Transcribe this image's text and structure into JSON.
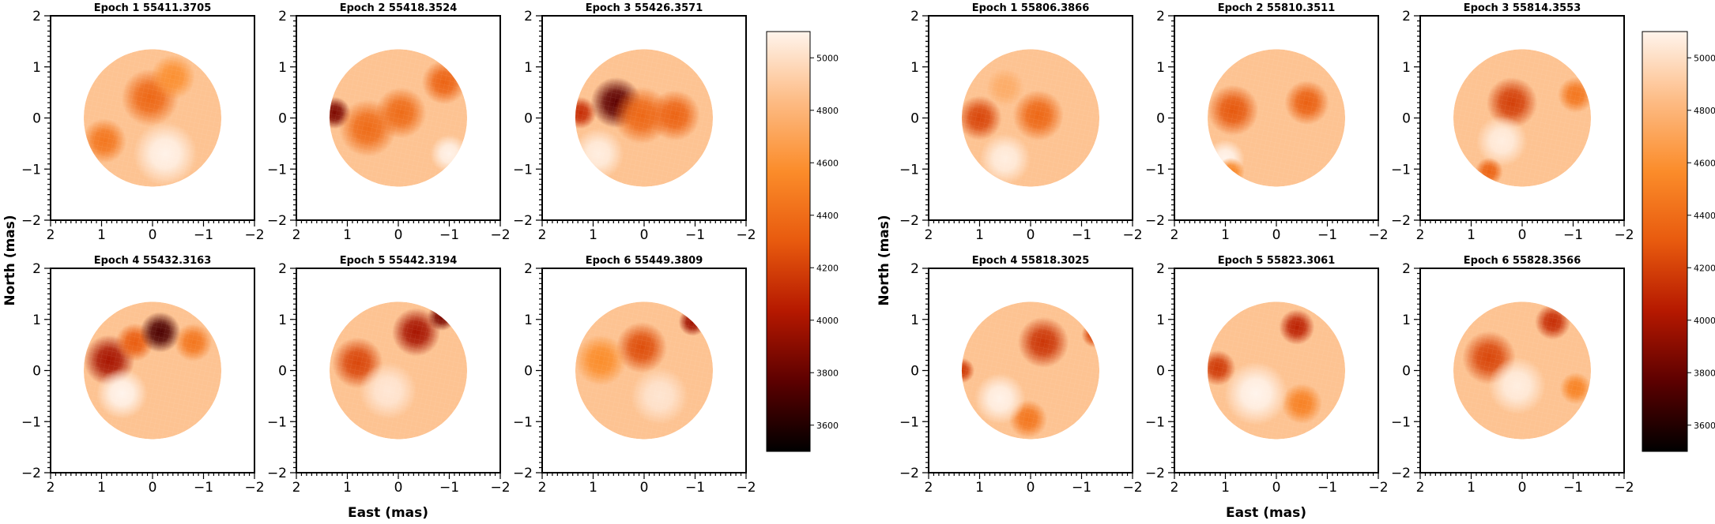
{
  "colors": {
    "axis": "#000000",
    "background": "#ffffff",
    "colormap": [
      "#000000",
      "#5c0000",
      "#b51800",
      "#e85a0e",
      "#fb8c2a",
      "#fdbb84",
      "#fff4ec"
    ]
  },
  "chart_data": [
    {
      "type": "heatmap",
      "name": "left-figure",
      "xlabel": "East (mas)",
      "ylabel": "North (mas)",
      "xlim": [
        2,
        -2
      ],
      "ylim": [
        -2,
        2
      ],
      "xticks": [
        "2",
        "1",
        "0",
        "−1",
        "−2"
      ],
      "yticks": [
        "2",
        "1",
        "0",
        "−1",
        "−2"
      ],
      "grid": false,
      "colorbar": {
        "range": [
          3500,
          5100
        ],
        "ticks": [
          "5000",
          "4800",
          "4600",
          "4400",
          "4200",
          "4000",
          "3800",
          "3600"
        ],
        "tick_values": [
          5000,
          4800,
          4600,
          4400,
          4200,
          4000,
          3800,
          3600
        ]
      },
      "stellar_radius_mas": 1.35,
      "base_temperature": 4870,
      "panels": [
        {
          "title": "Epoch 1 55411.3705",
          "spots": [
            {
              "x": 0.05,
              "y": 0.4,
              "r": 0.45,
              "dT": -500
            },
            {
              "x": -0.4,
              "y": 0.8,
              "r": 0.35,
              "dT": -280
            },
            {
              "x": 0.95,
              "y": -0.45,
              "r": 0.35,
              "dT": -420
            },
            {
              "x": -0.25,
              "y": -0.7,
              "r": 0.5,
              "dT": 220
            }
          ]
        },
        {
          "title": "Epoch 2 55418.3524",
          "spots": [
            {
              "x": 1.25,
              "y": 0.1,
              "r": 0.25,
              "dT": -1000
            },
            {
              "x": 0.6,
              "y": -0.2,
              "r": 0.45,
              "dT": -480
            },
            {
              "x": -0.05,
              "y": 0.1,
              "r": 0.4,
              "dT": -480
            },
            {
              "x": -0.9,
              "y": 0.7,
              "r": 0.35,
              "dT": -520
            },
            {
              "x": -1.0,
              "y": -0.7,
              "r": 0.3,
              "dT": 220
            }
          ]
        },
        {
          "title": "Epoch 3 55426.3571",
          "spots": [
            {
              "x": 1.25,
              "y": 0.1,
              "r": 0.25,
              "dT": -750
            },
            {
              "x": 0.55,
              "y": 0.3,
              "r": 0.4,
              "dT": -1100
            },
            {
              "x": 0.05,
              "y": 0.05,
              "r": 0.45,
              "dT": -500
            },
            {
              "x": -0.6,
              "y": 0.05,
              "r": 0.4,
              "dT": -520
            },
            {
              "x": 0.9,
              "y": -0.7,
              "r": 0.4,
              "dT": 200
            }
          ]
        },
        {
          "title": "Epoch 4 55432.3163",
          "spots": [
            {
              "x": 0.85,
              "y": 0.2,
              "r": 0.4,
              "dT": -880
            },
            {
              "x": 0.35,
              "y": 0.55,
              "r": 0.3,
              "dT": -560
            },
            {
              "x": -0.15,
              "y": 0.75,
              "r": 0.32,
              "dT": -1150
            },
            {
              "x": -0.8,
              "y": 0.55,
              "r": 0.3,
              "dT": -420
            },
            {
              "x": 0.6,
              "y": -0.45,
              "r": 0.4,
              "dT": 230
            }
          ]
        },
        {
          "title": "Epoch 5 55442.3194",
          "spots": [
            {
              "x": 0.8,
              "y": 0.15,
              "r": 0.4,
              "dT": -650
            },
            {
              "x": -0.35,
              "y": 0.75,
              "r": 0.38,
              "dT": -880
            },
            {
              "x": -0.85,
              "y": 1.05,
              "r": 0.22,
              "dT": -1000
            },
            {
              "x": 0.2,
              "y": -0.4,
              "r": 0.45,
              "dT": 170
            }
          ]
        },
        {
          "title": "Epoch 6 55449.3809",
          "spots": [
            {
              "x": 0.05,
              "y": 0.45,
              "r": 0.4,
              "dT": -620
            },
            {
              "x": 0.85,
              "y": 0.2,
              "r": 0.4,
              "dT": -300
            },
            {
              "x": -0.95,
              "y": 0.95,
              "r": 0.22,
              "dT": -900
            },
            {
              "x": -0.3,
              "y": -0.5,
              "r": 0.45,
              "dT": 160
            }
          ]
        }
      ]
    },
    {
      "type": "heatmap",
      "name": "right-figure",
      "xlabel": "East (mas)",
      "ylabel": "North (mas)",
      "xlim": [
        2,
        -2
      ],
      "ylim": [
        -2,
        2
      ],
      "xticks": [
        "2",
        "1",
        "0",
        "−1",
        "−2"
      ],
      "yticks": [
        "2",
        "1",
        "0",
        "−1",
        "−2"
      ],
      "grid": false,
      "colorbar": {
        "range": [
          3500,
          5100
        ],
        "ticks": [
          "5000",
          "4800",
          "4600",
          "4400",
          "4200",
          "4000",
          "3800",
          "3600"
        ],
        "tick_values": [
          5000,
          4800,
          4600,
          4400,
          4200,
          4000,
          3800,
          3600
        ]
      },
      "stellar_radius_mas": 1.35,
      "base_temperature": 4870,
      "panels": [
        {
          "title": "Epoch 1 55806.3866",
          "spots": [
            {
              "x": 1.0,
              "y": 0.0,
              "r": 0.35,
              "dT": -650
            },
            {
              "x": -0.15,
              "y": 0.05,
              "r": 0.4,
              "dT": -500
            },
            {
              "x": 0.5,
              "y": 0.6,
              "r": 0.3,
              "dT": -120
            },
            {
              "x": 0.5,
              "y": -0.8,
              "r": 0.4,
              "dT": 200
            }
          ]
        },
        {
          "title": "Epoch 2 55810.3511",
          "spots": [
            {
              "x": 0.85,
              "y": 0.15,
              "r": 0.4,
              "dT": -580
            },
            {
              "x": -0.6,
              "y": 0.3,
              "r": 0.35,
              "dT": -540
            },
            {
              "x": 1.0,
              "y": -0.8,
              "r": 0.3,
              "dT": 230
            },
            {
              "x": 0.9,
              "y": -1.05,
              "r": 0.22,
              "dT": -330
            }
          ]
        },
        {
          "title": "Epoch 3 55814.3553",
          "spots": [
            {
              "x": 0.2,
              "y": 0.3,
              "r": 0.4,
              "dT": -680
            },
            {
              "x": -1.05,
              "y": 0.45,
              "r": 0.28,
              "dT": -420
            },
            {
              "x": 0.4,
              "y": -0.45,
              "r": 0.4,
              "dT": 200
            },
            {
              "x": 0.65,
              "y": -1.05,
              "r": 0.22,
              "dT": -520
            }
          ]
        },
        {
          "title": "Epoch 4 55818.3025",
          "spots": [
            {
              "x": -0.25,
              "y": 0.55,
              "r": 0.4,
              "dT": -720
            },
            {
              "x": 1.35,
              "y": 0.0,
              "r": 0.2,
              "dT": -700
            },
            {
              "x": -1.25,
              "y": 0.7,
              "r": 0.2,
              "dT": -650
            },
            {
              "x": 0.05,
              "y": -0.95,
              "r": 0.3,
              "dT": -420
            },
            {
              "x": 0.6,
              "y": -0.55,
              "r": 0.4,
              "dT": 220
            }
          ]
        },
        {
          "title": "Epoch 5 55823.3061",
          "spots": [
            {
              "x": 1.15,
              "y": 0.05,
              "r": 0.28,
              "dT": -700
            },
            {
              "x": -0.4,
              "y": 0.85,
              "r": 0.28,
              "dT": -800
            },
            {
              "x": -0.5,
              "y": -0.65,
              "r": 0.32,
              "dT": -360
            },
            {
              "x": 0.4,
              "y": -0.45,
              "r": 0.5,
              "dT": 230
            }
          ]
        },
        {
          "title": "Epoch 6 55828.3566",
          "spots": [
            {
              "x": 0.65,
              "y": 0.25,
              "r": 0.42,
              "dT": -650
            },
            {
              "x": -0.6,
              "y": 0.95,
              "r": 0.28,
              "dT": -750
            },
            {
              "x": -1.05,
              "y": -0.35,
              "r": 0.25,
              "dT": -350
            },
            {
              "x": 0.1,
              "y": -0.3,
              "r": 0.45,
              "dT": 200
            }
          ]
        }
      ]
    }
  ]
}
